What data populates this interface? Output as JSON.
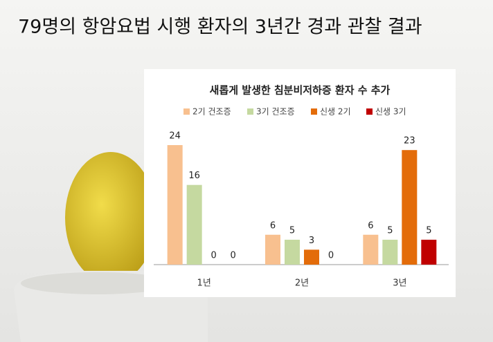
{
  "heading": "79명의 항암요법 시행 환자의 3년간 경과 관찰 결과",
  "chart_data": {
    "type": "bar",
    "title": "새롭게 발생한 침분비저하증 환자 수 추가",
    "categories": [
      "1년",
      "2년",
      "3년"
    ],
    "series": [
      {
        "name": "2기 건조증",
        "color": "#f8c08f",
        "values": [
          24,
          6,
          6
        ]
      },
      {
        "name": "3기 건조증",
        "color": "#c5d9a0",
        "values": [
          16,
          5,
          5
        ]
      },
      {
        "name": "신생 2기",
        "color": "#e36c0a",
        "values": [
          0,
          3,
          23
        ]
      },
      {
        "name": "신생 3기",
        "color": "#c00000",
        "values": [
          0,
          0,
          5
        ]
      }
    ],
    "legend": "top"
  }
}
